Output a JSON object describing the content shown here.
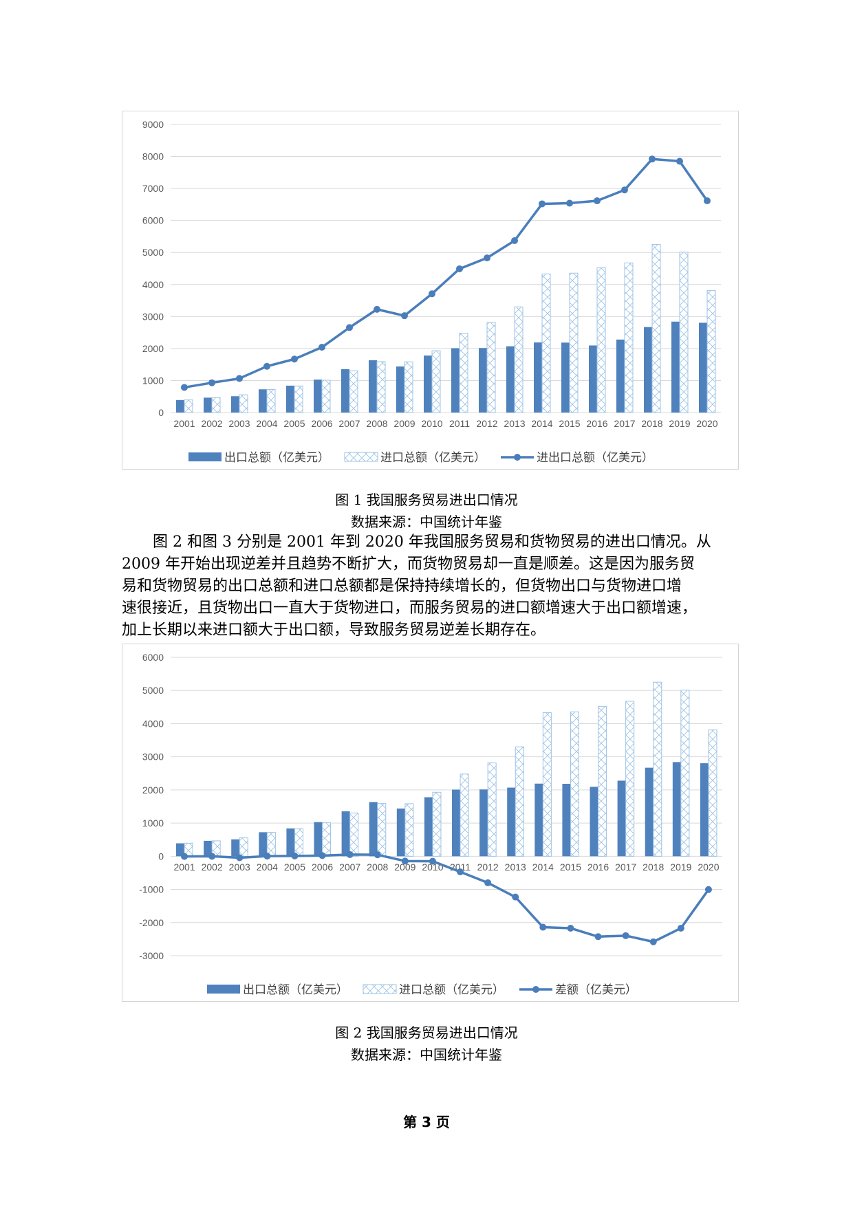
{
  "figure1": {
    "caption": "图 1  我国服务贸易进出口情况",
    "source": "数据来源：中国统计年鉴",
    "chart_data": {
      "type": "bar",
      "categories": [
        "2001",
        "2002",
        "2003",
        "2004",
        "2005",
        "2006",
        "2007",
        "2008",
        "2009",
        "2010",
        "2011",
        "2012",
        "2013",
        "2014",
        "2015",
        "2016",
        "2017",
        "2018",
        "2019",
        "2020"
      ],
      "ylim": [
        0,
        9000
      ],
      "yticks": [
        0,
        1000,
        2000,
        3000,
        4000,
        5000,
        6000,
        7000,
        8000,
        9000
      ],
      "grid": true,
      "legend_position": "bottom",
      "series": [
        {
          "name": "出口总额（亿美元）",
          "kind": "bar-solid",
          "values": [
            390,
            465,
            510,
            725,
            840,
            1030,
            1355,
            1635,
            1440,
            1780,
            2010,
            2015,
            2070,
            2190,
            2185,
            2095,
            2280,
            2670,
            2840,
            2805
          ]
        },
        {
          "name": "进口总额（亿美元）",
          "kind": "bar-hatched",
          "values": [
            395,
            465,
            555,
            720,
            830,
            1010,
            1305,
            1590,
            1585,
            1930,
            2480,
            2815,
            3300,
            4330,
            4355,
            4520,
            4675,
            5250,
            5010,
            3810
          ]
        },
        {
          "name": "进出口总额（亿美元）",
          "kind": "line",
          "values": [
            785,
            930,
            1065,
            1445,
            1670,
            2040,
            2655,
            3225,
            3025,
            3710,
            4490,
            4830,
            5370,
            6520,
            6540,
            6615,
            6955,
            7920,
            7850,
            6615
          ]
        }
      ]
    }
  },
  "paragraph": [
    "图 2 和图 3 分别是 2001 年到 2020 年我国服务贸易和货物贸易的进出口情况。从",
    "2009 年开始出现逆差并且趋势不断扩大，而货物贸易却一直是顺差。这是因为服务贸",
    "易和货物贸易的出口总额和进口总额都是保持持续增长的，但货物出口与货物进口增",
    "速很接近，且货物出口一直大于货物进口，而服务贸易的进口额增速大于出口额增速，",
    "加上长期以来进口额大于出口额，导致服务贸易逆差长期存在。"
  ],
  "figure2": {
    "caption": "图 2  我国服务贸易进出口情况",
    "source": "数据来源：中国统计年鉴",
    "chart_data": {
      "type": "bar",
      "categories": [
        "2001",
        "2002",
        "2003",
        "2004",
        "2005",
        "2006",
        "2007",
        "2008",
        "2009",
        "2010",
        "2011",
        "2012",
        "2013",
        "2014",
        "2015",
        "2016",
        "2017",
        "2018",
        "2019",
        "2020"
      ],
      "ylim": [
        -3000,
        6000
      ],
      "yticks": [
        -3000,
        -2000,
        -1000,
        0,
        1000,
        2000,
        3000,
        4000,
        5000,
        6000
      ],
      "grid": true,
      "legend_position": "bottom",
      "series": [
        {
          "name": "出口总额（亿美元）",
          "kind": "bar-solid",
          "values": [
            390,
            465,
            510,
            725,
            840,
            1030,
            1355,
            1635,
            1440,
            1780,
            2010,
            2015,
            2070,
            2190,
            2185,
            2095,
            2280,
            2670,
            2840,
            2805
          ]
        },
        {
          "name": "进口总额（亿美元）",
          "kind": "bar-hatched",
          "values": [
            395,
            465,
            555,
            720,
            830,
            1010,
            1305,
            1590,
            1585,
            1930,
            2480,
            2815,
            3300,
            4330,
            4355,
            4520,
            4675,
            5250,
            5010,
            3810
          ]
        },
        {
          "name": "差额（亿美元）",
          "kind": "line",
          "values": [
            -5,
            0,
            -45,
            5,
            10,
            20,
            50,
            45,
            -145,
            -150,
            -470,
            -800,
            -1230,
            -2140,
            -2170,
            -2425,
            -2395,
            -2580,
            -2170,
            -1005
          ]
        }
      ]
    }
  },
  "footer": {
    "page_label": "第 3 页"
  },
  "colors": {
    "solid_bar": "#4f81bd",
    "hatch": "#9dc3e6",
    "line": "#4a7ebb",
    "grid": "#d9d9d9"
  }
}
